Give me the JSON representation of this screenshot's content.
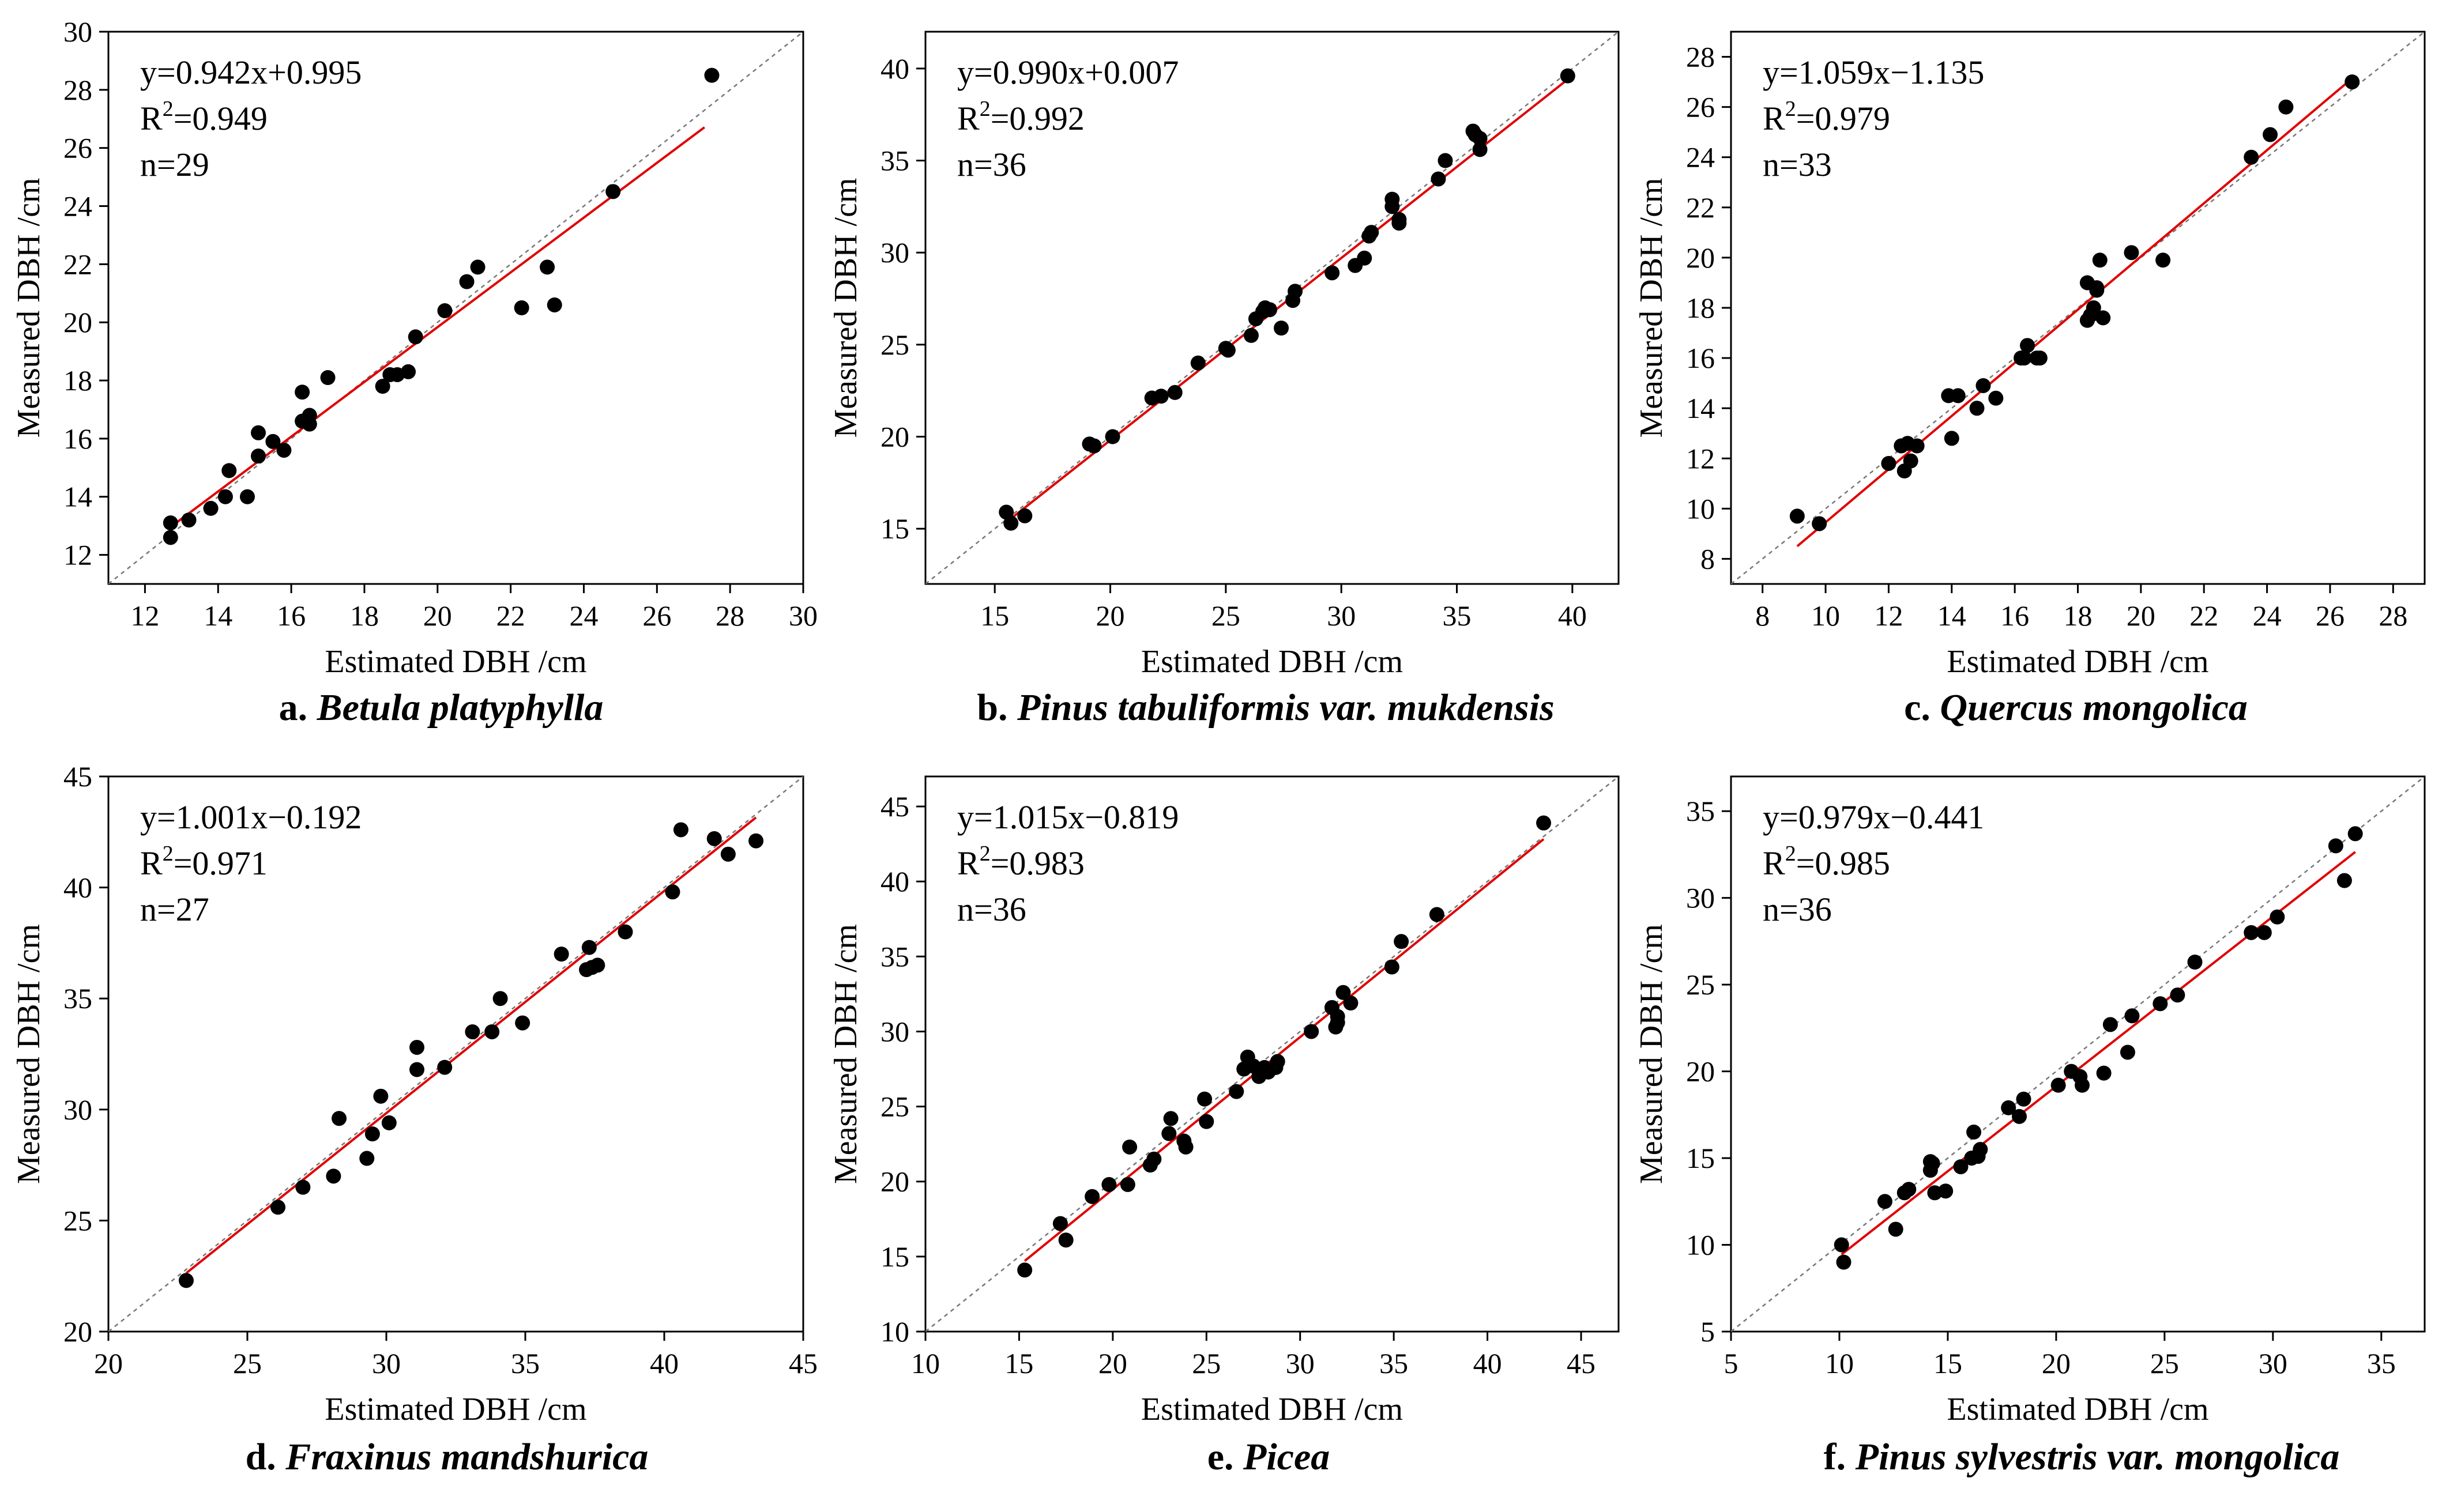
{
  "figure": {
    "xlabel": "Estimated DBH /cm",
    "ylabel": "Measured DBH /cm",
    "colors": {
      "fit_line": "#e00000",
      "reference_line": "#777777",
      "points": "#000000",
      "axes": "#000000"
    }
  },
  "chart_data": [
    {
      "type": "scatter",
      "panel": "a",
      "caption_letter": "a.",
      "caption_species": "Betula platyphylla",
      "title": "",
      "xlabel": "Estimated DBH /cm",
      "ylabel": "Measured DBH /cm",
      "equation": "y=0.942x+0.995",
      "r2_label": "R",
      "r2_sup": "2",
      "r2_value": "=0.949",
      "n_label": "n=29",
      "xlim": [
        11,
        30
      ],
      "ylim": [
        11,
        30
      ],
      "xticks": [
        12,
        14,
        16,
        18,
        20,
        22,
        24,
        26,
        28,
        30
      ],
      "yticks": [
        12,
        14,
        16,
        18,
        20,
        22,
        24,
        26,
        28,
        30
      ],
      "slope": 0.942,
      "intercept": 0.995,
      "fit_range": [
        12.7,
        27.3
      ],
      "points": [
        [
          12.7,
          13.1
        ],
        [
          12.7,
          12.6
        ],
        [
          13.2,
          13.2
        ],
        [
          13.8,
          13.6
        ],
        [
          14.2,
          14.0
        ],
        [
          14.3,
          14.9
        ],
        [
          14.8,
          14.0
        ],
        [
          15.1,
          16.2
        ],
        [
          15.1,
          15.4
        ],
        [
          15.5,
          15.9
        ],
        [
          15.8,
          15.6
        ],
        [
          16.3,
          17.6
        ],
        [
          16.3,
          16.6
        ],
        [
          16.5,
          16.8
        ],
        [
          16.5,
          16.5
        ],
        [
          17.0,
          18.1
        ],
        [
          18.5,
          17.8
        ],
        [
          18.7,
          18.2
        ],
        [
          18.9,
          18.2
        ],
        [
          19.2,
          18.3
        ],
        [
          19.4,
          19.5
        ],
        [
          20.2,
          20.4
        ],
        [
          20.8,
          21.4
        ],
        [
          21.1,
          21.9
        ],
        [
          22.3,
          20.5
        ],
        [
          23.0,
          21.9
        ],
        [
          23.2,
          20.6
        ],
        [
          24.8,
          24.5
        ],
        [
          27.5,
          28.5
        ]
      ]
    },
    {
      "type": "scatter",
      "panel": "b",
      "caption_letter": "b.",
      "caption_species": "Pinus tabuliformis var. mukdensis",
      "title": "",
      "xlabel": "Estimated DBH /cm",
      "ylabel": "Measured DBH /cm",
      "equation": "y=0.990x+0.007",
      "r2_label": "R",
      "r2_sup": "2",
      "r2_value": "=0.992",
      "n_label": "n=36",
      "xlim": [
        12,
        42
      ],
      "ylim": [
        12,
        42
      ],
      "xticks": [
        15,
        20,
        25,
        30,
        35,
        40
      ],
      "yticks": [
        15,
        20,
        25,
        30,
        35,
        40
      ],
      "slope": 0.99,
      "intercept": 0.007,
      "fit_range": [
        15.5,
        39.8
      ],
      "points": [
        [
          15.5,
          15.9
        ],
        [
          15.7,
          15.3
        ],
        [
          16.3,
          15.7
        ],
        [
          19.1,
          19.6
        ],
        [
          19.3,
          19.5
        ],
        [
          20.1,
          20.0
        ],
        [
          21.8,
          22.1
        ],
        [
          22.2,
          22.2
        ],
        [
          22.8,
          22.4
        ],
        [
          23.8,
          24.0
        ],
        [
          25.0,
          24.8
        ],
        [
          25.1,
          24.7
        ],
        [
          26.1,
          25.5
        ],
        [
          26.3,
          26.4
        ],
        [
          26.6,
          26.8
        ],
        [
          26.7,
          27.0
        ],
        [
          26.9,
          26.9
        ],
        [
          27.4,
          25.9
        ],
        [
          27.9,
          27.4
        ],
        [
          28.0,
          27.9
        ],
        [
          29.6,
          28.9
        ],
        [
          30.6,
          29.3
        ],
        [
          31.0,
          29.7
        ],
        [
          31.2,
          30.9
        ],
        [
          31.3,
          31.1
        ],
        [
          32.2,
          32.9
        ],
        [
          32.2,
          32.5
        ],
        [
          32.5,
          31.8
        ],
        [
          32.5,
          31.6
        ],
        [
          34.2,
          34.0
        ],
        [
          34.5,
          35.0
        ],
        [
          35.7,
          36.6
        ],
        [
          35.8,
          36.4
        ],
        [
          36.0,
          35.6
        ],
        [
          36.0,
          36.2
        ],
        [
          39.8,
          39.6
        ]
      ]
    },
    {
      "type": "scatter",
      "panel": "c",
      "caption_letter": "c.",
      "caption_species": "Quercus mongolica",
      "title": "",
      "xlabel": "Estimated DBH /cm",
      "ylabel": "Measured DBH /cm",
      "equation": "y=1.059x−1.135",
      "r2_label": "R",
      "r2_sup": "2",
      "r2_value": "=0.979",
      "n_label": "n=33",
      "xlim": [
        7,
        29
      ],
      "ylim": [
        7,
        29
      ],
      "xticks": [
        8,
        10,
        12,
        14,
        16,
        18,
        20,
        22,
        24,
        26,
        28
      ],
      "yticks": [
        8,
        10,
        12,
        14,
        16,
        18,
        20,
        22,
        24,
        26,
        28
      ],
      "slope": 1.059,
      "intercept": -1.135,
      "fit_range": [
        9.1,
        26.7
      ],
      "points": [
        [
          9.1,
          9.7
        ],
        [
          9.8,
          9.4
        ],
        [
          12.0,
          11.8
        ],
        [
          12.4,
          12.5
        ],
        [
          12.5,
          11.5
        ],
        [
          12.6,
          12.6
        ],
        [
          12.7,
          11.9
        ],
        [
          12.9,
          12.5
        ],
        [
          13.9,
          14.5
        ],
        [
          14.0,
          12.8
        ],
        [
          14.2,
          14.5
        ],
        [
          14.8,
          14.0
        ],
        [
          15.0,
          14.9
        ],
        [
          15.4,
          14.4
        ],
        [
          16.3,
          16.0
        ],
        [
          16.4,
          16.5
        ],
        [
          16.7,
          16.0
        ],
        [
          16.8,
          16.0
        ],
        [
          18.3,
          19.0
        ],
        [
          18.3,
          17.5
        ],
        [
          18.4,
          17.7
        ],
        [
          18.5,
          18.0
        ],
        [
          18.6,
          18.8
        ],
        [
          18.7,
          19.9
        ],
        [
          18.8,
          17.6
        ],
        [
          19.7,
          20.2
        ],
        [
          20.7,
          19.9
        ],
        [
          23.5,
          24.0
        ],
        [
          24.1,
          24.9
        ],
        [
          24.6,
          26.0
        ],
        [
          26.7,
          27.0
        ],
        [
          16.2,
          16.0
        ],
        [
          18.6,
          18.7
        ]
      ]
    },
    {
      "type": "scatter",
      "panel": "d",
      "caption_letter": "d.",
      "caption_species": "Fraxinus mandshurica",
      "title": "",
      "xlabel": "Estimated DBH /cm",
      "ylabel": "Measured DBH /cm",
      "equation": "y=1.001x−0.192",
      "r2_label": "R",
      "r2_sup": "2",
      "r2_value": "=0.971",
      "n_label": "n=27",
      "xlim": [
        20,
        45
      ],
      "ylim": [
        20,
        45
      ],
      "xticks": [
        20,
        25,
        30,
        35,
        40,
        45
      ],
      "yticks": [
        20,
        25,
        30,
        35,
        40,
        45
      ],
      "slope": 1.001,
      "intercept": -0.192,
      "fit_range": [
        22.8,
        43.3
      ],
      "points": [
        [
          22.8,
          22.3
        ],
        [
          26.1,
          25.6
        ],
        [
          27.0,
          26.5
        ],
        [
          28.1,
          27.0
        ],
        [
          28.3,
          29.6
        ],
        [
          29.3,
          27.8
        ],
        [
          29.5,
          28.9
        ],
        [
          29.8,
          30.6
        ],
        [
          30.1,
          29.4
        ],
        [
          31.1,
          32.8
        ],
        [
          31.1,
          31.8
        ],
        [
          32.1,
          31.9
        ],
        [
          33.1,
          33.5
        ],
        [
          33.8,
          33.5
        ],
        [
          34.1,
          35.0
        ],
        [
          34.9,
          33.9
        ],
        [
          36.3,
          37.0
        ],
        [
          37.2,
          36.3
        ],
        [
          37.3,
          37.3
        ],
        [
          37.6,
          36.5
        ],
        [
          38.6,
          38.0
        ],
        [
          40.3,
          39.8
        ],
        [
          40.6,
          42.6
        ],
        [
          41.8,
          42.2
        ],
        [
          42.3,
          41.5
        ],
        [
          43.3,
          42.1
        ],
        [
          37.4,
          36.4
        ]
      ]
    },
    {
      "type": "scatter",
      "panel": "e",
      "caption_letter": "e.",
      "caption_species": "Picea",
      "title": "",
      "xlabel": "Estimated DBH /cm",
      "ylabel": "Measured DBH /cm",
      "equation": "y=1.015x−0.819",
      "r2_label": "R",
      "r2_sup": "2",
      "r2_value": "=0.983",
      "n_label": "n=36",
      "xlim": [
        10,
        47
      ],
      "ylim": [
        10,
        47
      ],
      "xticks": [
        10,
        15,
        20,
        25,
        30,
        35,
        40,
        45
      ],
      "yticks": [
        10,
        15,
        20,
        25,
        30,
        35,
        40,
        45
      ],
      "slope": 1.015,
      "intercept": -0.819,
      "fit_range": [
        15.3,
        43.0
      ],
      "points": [
        [
          15.3,
          14.1
        ],
        [
          17.2,
          17.2
        ],
        [
          17.5,
          16.1
        ],
        [
          18.9,
          19.0
        ],
        [
          19.8,
          19.8
        ],
        [
          20.8,
          19.8
        ],
        [
          20.9,
          22.3
        ],
        [
          22.0,
          21.1
        ],
        [
          22.2,
          21.5
        ],
        [
          23.0,
          23.2
        ],
        [
          23.1,
          24.2
        ],
        [
          23.8,
          22.7
        ],
        [
          23.9,
          22.3
        ],
        [
          24.9,
          25.5
        ],
        [
          25.0,
          24.0
        ],
        [
          26.6,
          26.0
        ],
        [
          27.0,
          27.5
        ],
        [
          27.2,
          28.3
        ],
        [
          27.8,
          27.0
        ],
        [
          27.9,
          27.4
        ],
        [
          28.1,
          27.6
        ],
        [
          28.7,
          27.6
        ],
        [
          28.8,
          28.0
        ],
        [
          30.6,
          30.0
        ],
        [
          31.7,
          31.6
        ],
        [
          31.9,
          30.3
        ],
        [
          32.0,
          31.0
        ],
        [
          32.3,
          32.6
        ],
        [
          32.7,
          31.9
        ],
        [
          34.9,
          34.3
        ],
        [
          35.4,
          36.0
        ],
        [
          37.3,
          37.8
        ],
        [
          43.0,
          43.9
        ],
        [
          27.5,
          27.7
        ],
        [
          32.0,
          30.6
        ],
        [
          28.3,
          27.3
        ]
      ]
    },
    {
      "type": "scatter",
      "panel": "f",
      "caption_letter": "f.",
      "caption_species": "Pinus sylvestris var. mongolica",
      "title": "",
      "xlabel": "Estimated DBH /cm",
      "ylabel": "Measured DBH /cm",
      "equation": "y=0.979x−0.441",
      "r2_label": "R",
      "r2_sup": "2",
      "r2_value": "=0.985",
      "n_label": "n=36",
      "xlim": [
        5,
        37
      ],
      "ylim": [
        5,
        37
      ],
      "xticks": [
        5,
        10,
        15,
        20,
        25,
        30,
        35
      ],
      "yticks": [
        5,
        10,
        15,
        20,
        25,
        30,
        35
      ],
      "slope": 0.979,
      "intercept": -0.441,
      "fit_range": [
        10.1,
        33.8
      ],
      "points": [
        [
          10.1,
          10.0
        ],
        [
          10.2,
          9.0
        ],
        [
          12.1,
          12.5
        ],
        [
          12.6,
          10.9
        ],
        [
          13.0,
          13.0
        ],
        [
          13.2,
          13.2
        ],
        [
          14.3,
          14.7
        ],
        [
          14.2,
          14.3
        ],
        [
          14.4,
          13.0
        ],
        [
          14.9,
          13.1
        ],
        [
          15.6,
          14.5
        ],
        [
          16.1,
          15.0
        ],
        [
          16.2,
          16.5
        ],
        [
          16.5,
          15.5
        ],
        [
          17.8,
          17.9
        ],
        [
          18.5,
          18.4
        ],
        [
          18.3,
          17.4
        ],
        [
          20.1,
          19.2
        ],
        [
          20.7,
          20.0
        ],
        [
          21.1,
          19.7
        ],
        [
          21.2,
          19.2
        ],
        [
          22.2,
          19.9
        ],
        [
          22.5,
          22.7
        ],
        [
          23.3,
          21.1
        ],
        [
          23.5,
          23.2
        ],
        [
          24.8,
          23.9
        ],
        [
          25.6,
          24.4
        ],
        [
          26.4,
          26.3
        ],
        [
          29.0,
          28.0
        ],
        [
          29.6,
          28.0
        ],
        [
          30.2,
          28.9
        ],
        [
          32.9,
          33.0
        ],
        [
          33.3,
          31.0
        ],
        [
          33.8,
          33.7
        ],
        [
          14.2,
          14.8
        ],
        [
          16.4,
          15.1
        ]
      ]
    }
  ]
}
